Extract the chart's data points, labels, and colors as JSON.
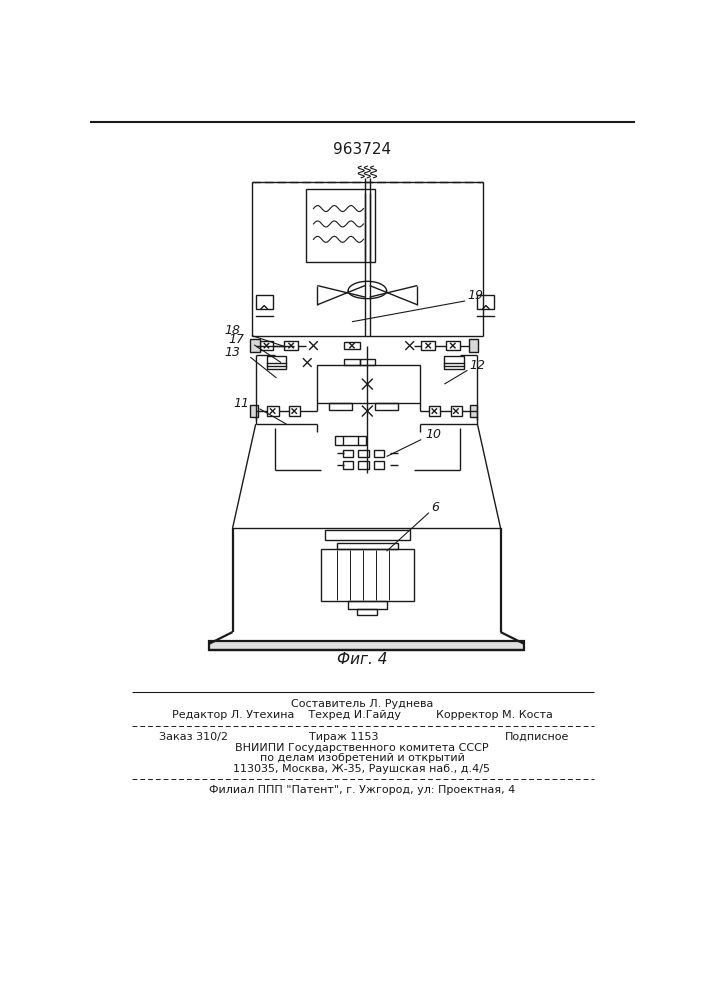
{
  "patent_number": "963724",
  "fig_label": "Фиг. 4",
  "bg_color": "#ffffff",
  "line_color": "#1a1a1a",
  "footer": [
    "Составитель Л. Руднева",
    "Редактор Л. Утехина    Техред И.Гайду          Корректор М. Коста",
    "Заказ 310/2",
    "Тираж 1153",
    "Подписное",
    "ВНИИПИ Государственного комитета СССР",
    "по делам изобретений и открытий",
    "113035, Москва, Ж-35, Раушская наб., д.4/5",
    "Филиал ППП \"Патент\", г. Ужгород, ул: Проектная, 4"
  ]
}
